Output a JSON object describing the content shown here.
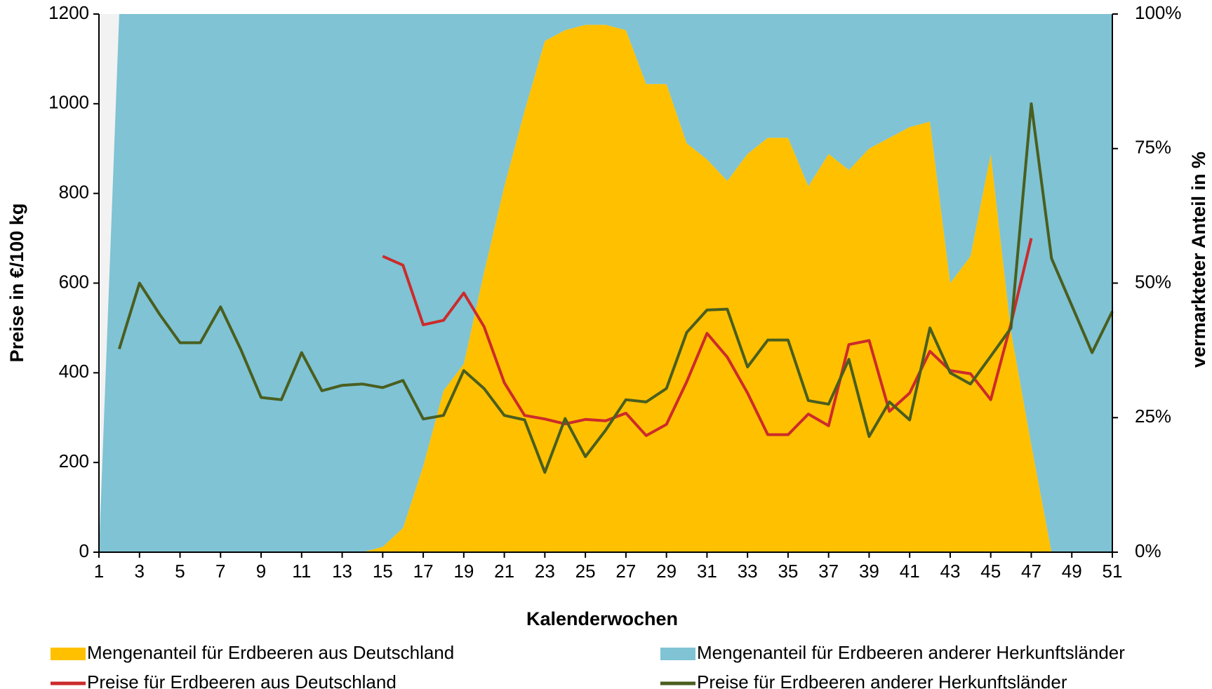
{
  "chart_data": {
    "type": "combo",
    "xlabel": "Kalenderwochen",
    "ylabel": "Preise in €/100 kg",
    "y2label": "vermarkteter Anteil in %",
    "x": [
      1,
      2,
      3,
      4,
      5,
      6,
      7,
      8,
      9,
      10,
      11,
      12,
      13,
      14,
      15,
      16,
      17,
      18,
      19,
      20,
      21,
      22,
      23,
      24,
      25,
      26,
      27,
      28,
      29,
      30,
      31,
      32,
      33,
      34,
      35,
      36,
      37,
      38,
      39,
      40,
      41,
      42,
      43,
      44,
      45,
      46,
      47,
      48,
      49,
      50,
      51
    ],
    "xlim": [
      1,
      51
    ],
    "xticks": [
      1,
      3,
      5,
      7,
      9,
      11,
      13,
      15,
      17,
      19,
      21,
      23,
      25,
      27,
      29,
      31,
      33,
      35,
      37,
      39,
      41,
      43,
      45,
      47,
      49,
      51
    ],
    "ylim": [
      0,
      1200
    ],
    "yticks": [
      0,
      200,
      400,
      600,
      800,
      1000,
      1200
    ],
    "y2lim": [
      0,
      100
    ],
    "y2ticks": [
      {
        "value": 0,
        "label": "0%"
      },
      {
        "value": 25,
        "label": "25%"
      },
      {
        "value": 50,
        "label": "50%"
      },
      {
        "value": 75,
        "label": "75%"
      },
      {
        "value": 100,
        "label": "100%"
      }
    ],
    "stacked": true,
    "series": [
      {
        "name": "Mengenanteil für Erdbeeren aus Deutschland",
        "type": "area",
        "axis": "y2",
        "color": "#ffc000",
        "values": [
          0,
          0,
          0,
          0,
          0,
          0,
          0,
          0,
          0,
          0,
          0,
          0,
          0,
          0,
          1,
          4.5,
          16,
          30,
          35,
          52,
          68,
          82,
          95,
          97,
          98,
          98,
          97,
          87,
          87,
          76,
          73,
          69,
          74,
          77,
          77,
          68,
          74,
          71,
          75,
          77,
          79,
          80,
          50,
          55,
          74,
          41,
          20,
          0,
          0,
          0,
          0
        ]
      },
      {
        "name": "Mengenanteil für Erdbeeren anderer Herkunftsländer",
        "type": "area",
        "axis": "y2",
        "color": "#7fc3d4",
        "values": [
          0,
          100,
          100,
          100,
          100,
          100,
          100,
          100,
          100,
          100,
          100,
          100,
          100,
          100,
          99,
          95.5,
          84,
          70,
          65,
          48,
          32,
          18,
          5,
          3,
          2,
          2,
          3,
          13,
          13,
          24,
          27,
          31,
          26,
          23,
          23,
          32,
          26,
          29,
          25,
          23,
          21,
          20,
          50,
          45,
          26,
          59,
          80,
          100,
          100,
          100,
          100
        ]
      },
      {
        "name": "Preise für Erdbeeren aus Deutschland",
        "type": "line",
        "color": "#cc2b2b",
        "values": [
          null,
          null,
          null,
          null,
          null,
          null,
          null,
          null,
          null,
          null,
          null,
          null,
          null,
          null,
          660,
          640,
          507,
          517,
          578,
          503,
          378,
          305,
          297,
          286,
          296,
          293,
          310,
          260,
          285,
          380,
          488,
          435,
          355,
          262,
          262,
          308,
          282,
          463,
          472,
          314,
          355,
          448,
          405,
          398,
          340,
          510,
          700,
          null,
          null,
          null,
          null
        ]
      },
      {
        "name": "Preise für Erdbeeren anderer Herkunftsländer",
        "type": "line",
        "color": "#4a5e1f",
        "values": [
          null,
          453,
          600,
          530,
          467,
          467,
          547,
          452,
          345,
          340,
          445,
          360,
          372,
          375,
          367,
          383,
          297,
          305,
          405,
          365,
          305,
          295,
          178,
          298,
          213,
          272,
          340,
          335,
          365,
          490,
          540,
          542,
          413,
          473,
          473,
          338,
          330,
          430,
          258,
          335,
          295,
          500,
          400,
          375,
          437,
          500,
          1000,
          655,
          550,
          445,
          537
        ]
      }
    ]
  }
}
